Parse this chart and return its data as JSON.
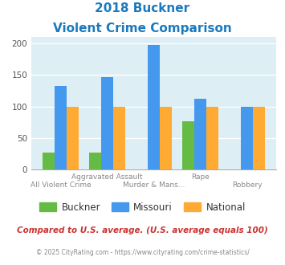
{
  "title_line1": "2018 Buckner",
  "title_line2": "Violent Crime Comparison",
  "title_color": "#1a7abf",
  "categories": [
    "All Violent Crime",
    "Aggravated Assault",
    "Murder & Mans...",
    "Rape",
    "Robbery"
  ],
  "top_labels": [
    "",
    "Aggravated Assault",
    "",
    "Rape",
    ""
  ],
  "bot_labels": [
    "All Violent Crime",
    "",
    "Murder & Mans...",
    "",
    "Robbery"
  ],
  "buckner": [
    27,
    27,
    0,
    77,
    0
  ],
  "missouri": [
    132,
    147,
    198,
    112,
    100
  ],
  "national": [
    100,
    100,
    100,
    100,
    100
  ],
  "buckner_color": "#66bb44",
  "missouri_color": "#4499ee",
  "national_color": "#ffaa33",
  "bg_color": "#ddeef5",
  "ylim": [
    0,
    210
  ],
  "yticks": [
    0,
    50,
    100,
    150,
    200
  ],
  "footnote1": "Compared to U.S. average. (U.S. average equals 100)",
  "footnote2": "© 2025 CityRating.com - https://www.cityrating.com/crime-statistics/",
  "footnote1_color": "#cc3333",
  "footnote2_color": "#888888",
  "legend_labels": [
    "Buckner",
    "Missouri",
    "National"
  ]
}
